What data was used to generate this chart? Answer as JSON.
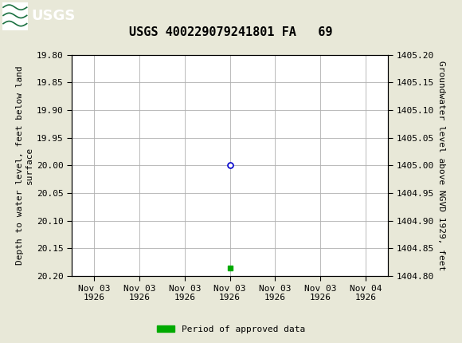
{
  "title": "USGS 400229079241801 FA   69",
  "ylabel_left": "Depth to water level, feet below land\nsurface",
  "ylabel_right": "Groundwater level above NGVD 1929, feet",
  "ylim_left": [
    20.2,
    19.8
  ],
  "ylim_right": [
    1404.8,
    1405.2
  ],
  "yticks_left": [
    19.8,
    19.85,
    19.9,
    19.95,
    20.0,
    20.05,
    20.1,
    20.15,
    20.2
  ],
  "yticks_right": [
    1404.8,
    1404.85,
    1404.9,
    1404.95,
    1405.0,
    1405.05,
    1405.1,
    1405.15,
    1405.2
  ],
  "data_point_x": 3.0,
  "data_point_y": 20.0,
  "green_bar_x": 3.0,
  "green_bar_y": 20.185,
  "x_tick_labels": [
    "Nov 03\n1926",
    "Nov 03\n1926",
    "Nov 03\n1926",
    "Nov 03\n1926",
    "Nov 03\n1926",
    "Nov 03\n1926",
    "Nov 04\n1926"
  ],
  "x_ticks": [
    0,
    1,
    2,
    3,
    4,
    5,
    6
  ],
  "xlim": [
    -0.5,
    6.5
  ],
  "header_color": "#1a7040",
  "circle_color": "#0000cc",
  "green_color": "#00aa00",
  "grid_color": "#b0b0b0",
  "bg_color": "#e8e8d8",
  "plot_bg_color": "#ffffff",
  "legend_label": "Period of approved data",
  "font_family": "monospace",
  "title_fontsize": 11,
  "tick_fontsize": 8,
  "label_fontsize": 8
}
